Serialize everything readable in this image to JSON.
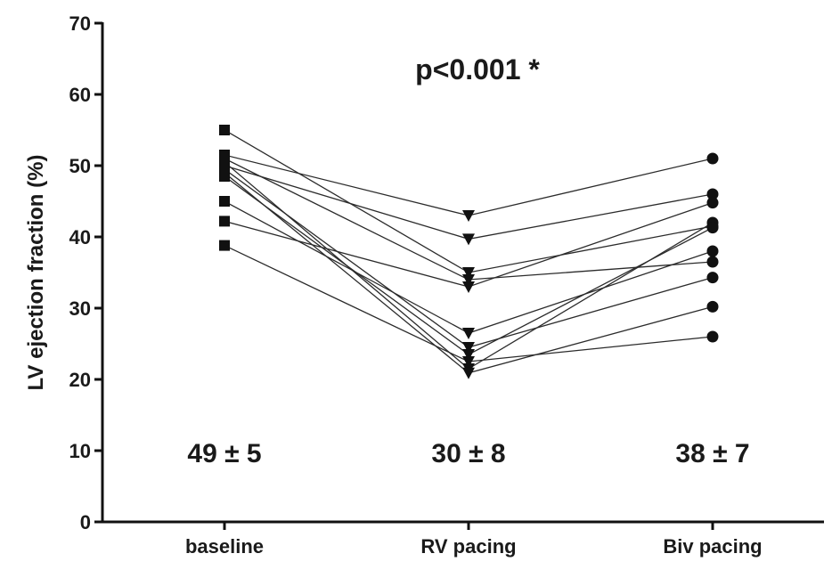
{
  "chart_data": {
    "type": "line",
    "title": "",
    "xlabel": "",
    "ylabel": "LV ejection fraction (%)",
    "ylim": [
      0,
      70
    ],
    "yticks": [
      0,
      10,
      20,
      30,
      40,
      50,
      60,
      70
    ],
    "categories": [
      "baseline",
      "RV pacing",
      "Biv pacing"
    ],
    "markers": [
      "square",
      "triangle-down",
      "circle"
    ],
    "series": [
      {
        "values": [
          55.0,
          35.0,
          41.5
        ]
      },
      {
        "values": [
          51.5,
          43.0,
          51.0
        ]
      },
      {
        "values": [
          51.0,
          34.0,
          36.5
        ]
      },
      {
        "values": [
          50.5,
          21.5,
          42.0
        ]
      },
      {
        "values": [
          50.0,
          39.7,
          46.0
        ]
      },
      {
        "values": [
          49.5,
          24.5,
          34.3
        ]
      },
      {
        "values": [
          49.0,
          20.9,
          30.2
        ]
      },
      {
        "values": [
          48.5,
          23.5,
          41.3
        ]
      },
      {
        "values": [
          45.0,
          26.5,
          38.0
        ]
      },
      {
        "values": [
          42.2,
          33.0,
          44.8
        ]
      },
      {
        "values": [
          38.8,
          22.5,
          26.0
        ]
      }
    ],
    "annotations": {
      "p_value": "p<0.001 *",
      "group_stats": [
        "49 ± 5",
        "30 ± 8",
        "38 ± 7"
      ]
    },
    "grid": false,
    "colors": {
      "line": "#2b2b2b",
      "marker": "#111111",
      "axis": "#111111"
    }
  }
}
